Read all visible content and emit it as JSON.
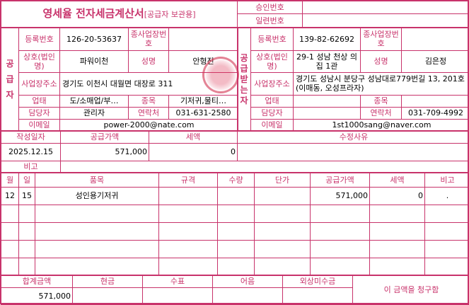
{
  "title": "영세율 전자세금계산서",
  "title_suffix": "[공급자 보관용]",
  "approval_label": "승인번호",
  "approval_value": "",
  "serial_label": "일련번호",
  "serial_value": "",
  "labels": {
    "reg_no": "등록번호",
    "sub_no": "종사업장번호",
    "company": "상호(법인명)",
    "name": "성명",
    "address": "사업장주소",
    "biz_type": "업태",
    "biz_item": "종목",
    "manager": "담당자",
    "contact": "연락처",
    "email": "이메일"
  },
  "supplier": {
    "side_label": "공급자",
    "reg_no": "126-20-53637",
    "sub_no": "",
    "company": "파워이천",
    "name": "안형진",
    "address": "경기도 이천시 대월면 대장로 311",
    "biz_type": "도/소매업/부…",
    "biz_item": "기저귀,물티…",
    "manager": "관리자",
    "contact": "031-631-2580",
    "email": "power-2000@nate.com"
  },
  "receiver": {
    "side_label": "공급받는자",
    "reg_no": "139-82-62692",
    "sub_no": "",
    "company": "29-1 성남 천상 의집 1관",
    "name": "김은정",
    "address": "경기도 성남시 분당구 성남대로779번길 13, 201호 (이매동, 오성프라자)",
    "biz_type": "",
    "biz_item": "",
    "manager": "",
    "contact": "031-709-4992",
    "email": "1st1000sang@naver.com"
  },
  "summary": {
    "date_label": "작성일자",
    "supply_label": "공급가액",
    "tax_label": "세액",
    "reason_label": "수정사유",
    "date": "2025.12.15",
    "supply": "571,000",
    "tax": "0",
    "reason": "",
    "note_label": "비고",
    "note": ""
  },
  "items_header": [
    "월",
    "일",
    "품목",
    "규격",
    "수량",
    "단가",
    "공급가액",
    "세액",
    "비고"
  ],
  "items": [
    [
      "12",
      "15",
      "성인용기저귀",
      "",
      "",
      "",
      "571,000",
      "0",
      "."
    ]
  ],
  "footer": {
    "total_label": "합계금액",
    "cash_label": "현금",
    "check_label": "수표",
    "note_label": "어음",
    "credit_label": "외상미수금",
    "total": "571,000",
    "cash": "",
    "check": "",
    "bill": "",
    "credit": "",
    "claim_text": "이 금액을 청구함"
  },
  "colors": {
    "accent": "#c8336b"
  }
}
